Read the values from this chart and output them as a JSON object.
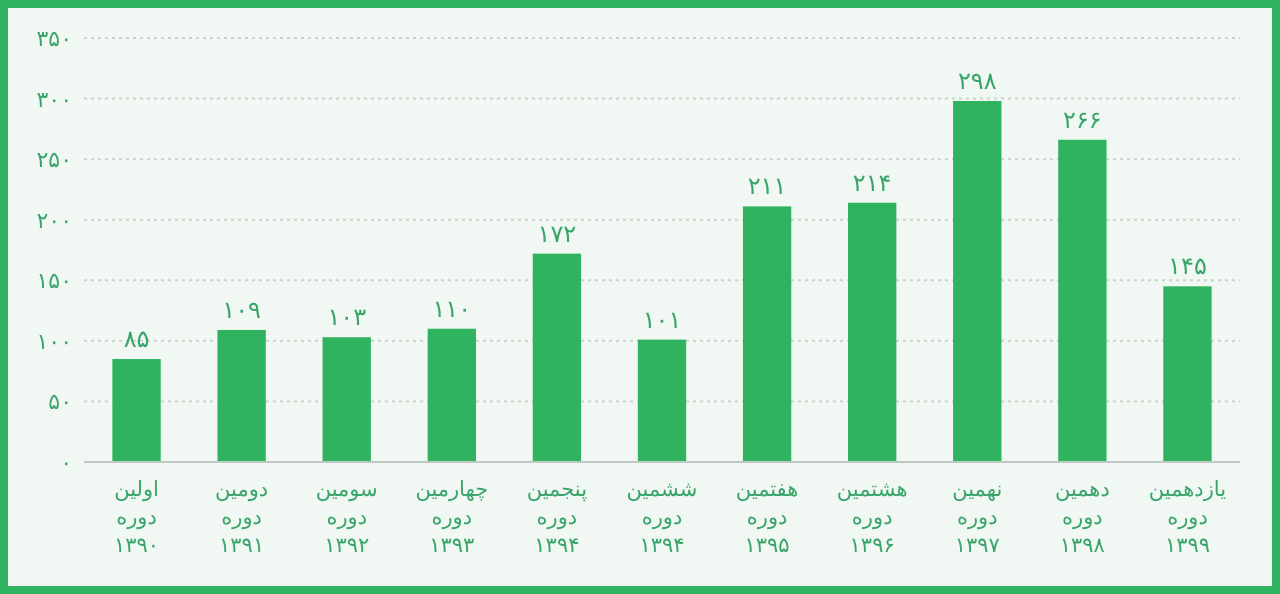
{
  "chart_data": {
    "type": "bar",
    "categories": [
      "اولین\nدوره\n۱۳۹۰",
      "دومین\nدوره\n۱۳۹۱",
      "سومین\nدوره\n۱۳۹۲",
      "چهارمین\nدوره\n۱۳۹۳",
      "پنجمین\nدوره\n۱۳۹۴",
      "ششمین\nدوره\n۱۳۹۴",
      "هفتمین\nدوره\n۱۳۹۵",
      "هشتمین\nدوره\n۱۳۹۶",
      "نهمین\nدوره\n۱۳۹۷",
      "دهمین\nدوره\n۱۳۹۸",
      "یازدهمین\nدوره\n۱۳۹۹"
    ],
    "values": [
      85,
      109,
      103,
      110,
      172,
      101,
      211,
      214,
      298,
      266,
      145
    ],
    "value_labels": [
      "۸۵",
      "۱۰۹",
      "۱۰۳",
      "۱۱۰",
      "۱۷۲",
      "۱۰۱",
      "۲۱۱",
      "۲۱۴",
      "۲۹۸",
      "۲۶۶",
      "۱۴۵"
    ],
    "color": "#2fb35f",
    "ylim": [
      0,
      350
    ],
    "yticks": [
      {
        "value": 0,
        "label": "۰"
      },
      {
        "value": 50,
        "label": "۵۰"
      },
      {
        "value": 100,
        "label": "۱۰۰"
      },
      {
        "value": 150,
        "label": "۱۵۰"
      },
      {
        "value": 200,
        "label": "۲۰۰"
      },
      {
        "value": 250,
        "label": "۲۵۰"
      },
      {
        "value": 300,
        "label": "۳۰۰"
      },
      {
        "value": 350,
        "label": "۳۵۰"
      }
    ],
    "grid": "y"
  }
}
